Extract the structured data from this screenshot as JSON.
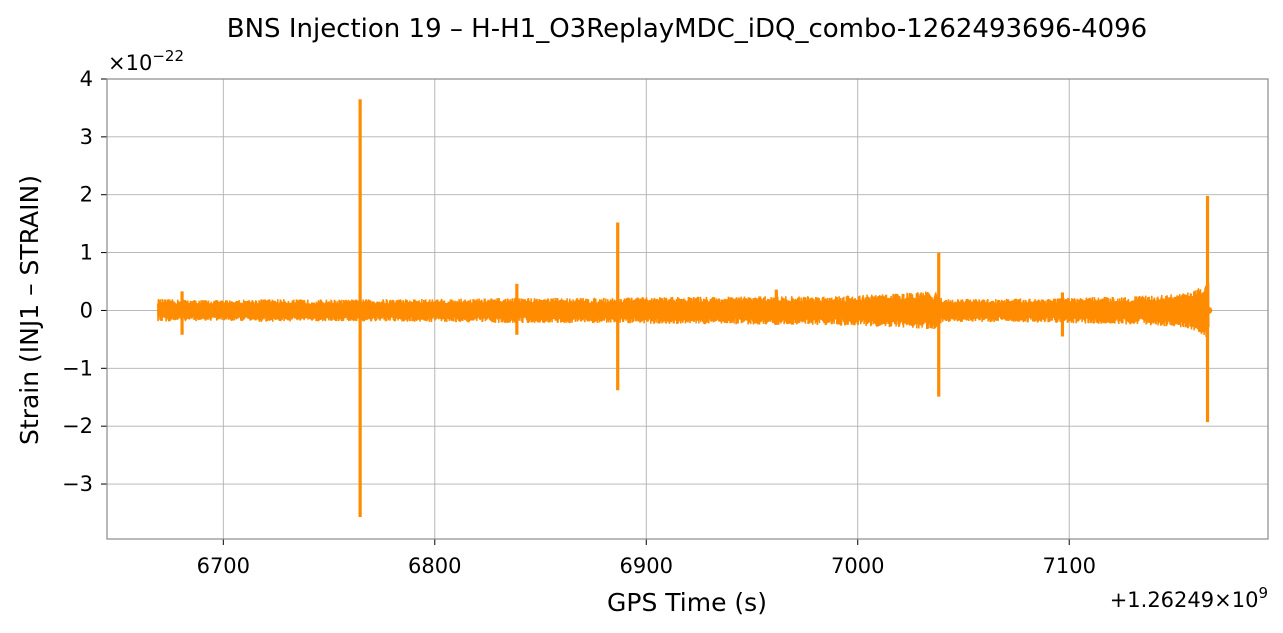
{
  "chart_data": {
    "type": "line",
    "title": "BNS Injection 19 – H-H1_O3ReplayMDC_iDQ_combo-1262493696-4096",
    "xlabel": "GPS Time (s)",
    "ylabel": "Strain (INJ1 – STRAIN)",
    "x_offset_label": "+1.26249×10",
    "x_offset_exponent": "9",
    "y_multiplier_label": "×10",
    "y_multiplier_exponent": "−22",
    "xlim": [
      6645,
      7194
    ],
    "ylim": [
      -3.95,
      4.0
    ],
    "xticks": [
      6700,
      6800,
      6900,
      7000,
      7100
    ],
    "xtick_labels": [
      "6700",
      "6800",
      "6900",
      "7000",
      "7100"
    ],
    "yticks": [
      -3,
      -2,
      -1,
      0,
      1,
      2,
      3,
      4
    ],
    "ytick_labels": [
      "−3",
      "−2",
      "−1",
      "0",
      "1",
      "2",
      "3",
      "4"
    ],
    "grid": true,
    "line_color": "#ff8c00",
    "series": [
      {
        "x_range": [
          6669,
          7166
        ],
        "noise_envelope": [
          [
            6669,
            0.2
          ],
          [
            6680,
            0.19
          ],
          [
            6700,
            0.18
          ],
          [
            6720,
            0.2
          ],
          [
            6740,
            0.19
          ],
          [
            6760,
            0.19
          ],
          [
            6780,
            0.2
          ],
          [
            6800,
            0.2
          ],
          [
            6820,
            0.21
          ],
          [
            6840,
            0.22
          ],
          [
            6860,
            0.22
          ],
          [
            6880,
            0.22
          ],
          [
            6900,
            0.23
          ],
          [
            6920,
            0.24
          ],
          [
            6940,
            0.24
          ],
          [
            6960,
            0.25
          ],
          [
            6980,
            0.25
          ],
          [
            7000,
            0.27
          ],
          [
            7020,
            0.3
          ],
          [
            7037,
            0.34
          ],
          [
            7040,
            0.2
          ],
          [
            7060,
            0.2
          ],
          [
            7080,
            0.21
          ],
          [
            7100,
            0.22
          ],
          [
            7120,
            0.24
          ],
          [
            7140,
            0.26
          ],
          [
            7155,
            0.3
          ],
          [
            7162,
            0.4
          ],
          [
            7166,
            0.5
          ]
        ],
        "spikes": [
          {
            "x": 6680.5,
            "ymax": 0.33,
            "ymin": -0.42
          },
          {
            "x": 6764.7,
            "ymax": 3.65,
            "ymin": -3.57
          },
          {
            "x": 6838.8,
            "ymax": 0.46,
            "ymin": -0.42
          },
          {
            "x": 6886.5,
            "ymax": 1.52,
            "ymin": -1.38
          },
          {
            "x": 6961.5,
            "ymax": 0.36,
            "ymin": -0.25
          },
          {
            "x": 7038.3,
            "ymax": 1.0,
            "ymin": -1.49
          },
          {
            "x": 7096.8,
            "ymax": 0.31,
            "ymin": -0.45
          },
          {
            "x": 7165.4,
            "ymax": 1.98,
            "ymin": -1.93
          }
        ]
      }
    ]
  }
}
